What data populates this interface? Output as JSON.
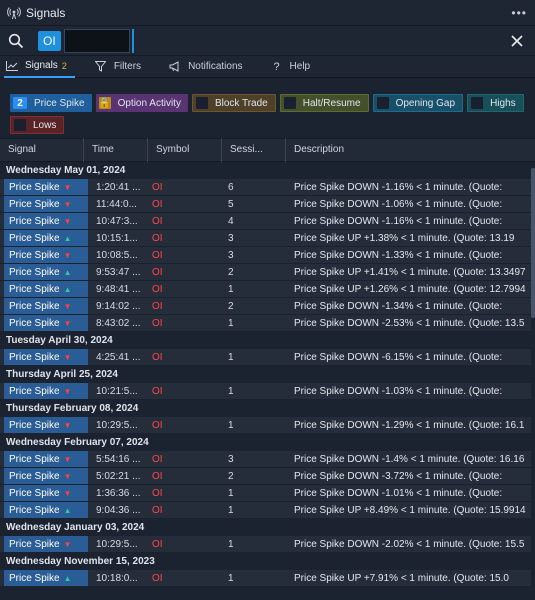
{
  "window": {
    "title": "Signals",
    "more_label": "•••"
  },
  "search": {
    "chip_label": "OI",
    "value": "",
    "placeholder": ""
  },
  "tabs": [
    {
      "label": "Signals",
      "badge": "2"
    },
    {
      "label": "Filters"
    },
    {
      "label": "Notifications"
    },
    {
      "label": "Help"
    }
  ],
  "filters": [
    {
      "label": "Price Spike",
      "count": "2",
      "style": "f-ps"
    },
    {
      "label": "Option Activity",
      "count": "🔒",
      "style": "f-oa"
    },
    {
      "label": "Block Trade",
      "count": "",
      "style": "f-bt"
    },
    {
      "label": "Halt/Resume",
      "count": "",
      "style": "f-hr"
    },
    {
      "label": "Opening Gap",
      "count": "",
      "style": "f-og"
    },
    {
      "label": "Highs",
      "count": "",
      "style": "f-hi"
    },
    {
      "label": "Lows",
      "count": "",
      "style": "f-lo"
    }
  ],
  "columns": {
    "signal": "Signal",
    "time": "Time",
    "symbol": "Symbol",
    "session": "Sessi...",
    "description": "Description"
  },
  "groups": [
    {
      "date": "Wednesday May 01, 2024",
      "rows": [
        {
          "signal": "Price Spike",
          "dir": "down",
          "time": "1:20:41 ...",
          "symbol": "OI",
          "session": "6",
          "description": "Price Spike DOWN -1.16% < 1 minute. (Quote:"
        },
        {
          "signal": "Price Spike",
          "dir": "down",
          "time": "11:44:0...",
          "symbol": "OI",
          "session": "5",
          "description": "Price Spike DOWN -1.06% < 1 minute. (Quote:"
        },
        {
          "signal": "Price Spike",
          "dir": "down",
          "time": "10:47:3...",
          "symbol": "OI",
          "session": "4",
          "description": "Price Spike DOWN -1.16% < 1 minute. (Quote:"
        },
        {
          "signal": "Price Spike",
          "dir": "up",
          "time": "10:15:1...",
          "symbol": "OI",
          "session": "3",
          "description": "Price Spike UP +1.38% < 1 minute. (Quote: 13.19"
        },
        {
          "signal": "Price Spike",
          "dir": "down",
          "time": "10:08:5...",
          "symbol": "OI",
          "session": "3",
          "description": "Price Spike DOWN -1.33% < 1 minute. (Quote:"
        },
        {
          "signal": "Price Spike",
          "dir": "up",
          "time": "9:53:47 ...",
          "symbol": "OI",
          "session": "2",
          "description": "Price Spike UP +1.41% < 1 minute. (Quote: 13.3497"
        },
        {
          "signal": "Price Spike",
          "dir": "up",
          "time": "9:48:41 ...",
          "symbol": "OI",
          "session": "1",
          "description": "Price Spike UP +1.26% < 1 minute. (Quote: 12.7994"
        },
        {
          "signal": "Price Spike",
          "dir": "down",
          "time": "9:14:02 ...",
          "symbol": "OI",
          "session": "2",
          "description": "Price Spike DOWN -1.34% < 1 minute. (Quote:"
        },
        {
          "signal": "Price Spike",
          "dir": "down",
          "time": "8:43:02 ...",
          "symbol": "OI",
          "session": "1",
          "description": "Price Spike DOWN -2.53% < 1 minute. (Quote: 13.5"
        }
      ]
    },
    {
      "date": "Tuesday April 30, 2024",
      "rows": [
        {
          "signal": "Price Spike",
          "dir": "down",
          "time": "4:25:41 ...",
          "symbol": "OI",
          "session": "1",
          "description": "Price Spike DOWN -6.15% < 1 minute. (Quote:"
        }
      ]
    },
    {
      "date": "Thursday April 25, 2024",
      "rows": [
        {
          "signal": "Price Spike",
          "dir": "down",
          "time": "10:21:5...",
          "symbol": "OI",
          "session": "1",
          "description": "Price Spike DOWN -1.03% < 1 minute. (Quote:"
        }
      ]
    },
    {
      "date": "Thursday February 08, 2024",
      "rows": [
        {
          "signal": "Price Spike",
          "dir": "down",
          "time": "10:29:5...",
          "symbol": "OI",
          "session": "1",
          "description": "Price Spike DOWN -1.29% < 1 minute. (Quote: 16.1"
        }
      ]
    },
    {
      "date": "Wednesday February 07, 2024",
      "rows": [
        {
          "signal": "Price Spike",
          "dir": "down",
          "time": "5:54:16 ...",
          "symbol": "OI",
          "session": "3",
          "description": "Price Spike DOWN -1.4% < 1 minute. (Quote: 16.16"
        },
        {
          "signal": "Price Spike",
          "dir": "down",
          "time": "5:02:21 ...",
          "symbol": "OI",
          "session": "2",
          "description": "Price Spike DOWN -3.72% < 1 minute. (Quote:"
        },
        {
          "signal": "Price Spike",
          "dir": "down",
          "time": "1:36:36 ...",
          "symbol": "OI",
          "session": "1",
          "description": "Price Spike DOWN -1.01% < 1 minute. (Quote:"
        },
        {
          "signal": "Price Spike",
          "dir": "up",
          "time": "9:04:36 ...",
          "symbol": "OI",
          "session": "1",
          "description": "Price Spike UP +8.49% < 1 minute. (Quote: 15.9914"
        }
      ]
    },
    {
      "date": "Wednesday January 03, 2024",
      "rows": [
        {
          "signal": "Price Spike",
          "dir": "down",
          "time": "10:29:5...",
          "symbol": "OI",
          "session": "1",
          "description": "Price Spike DOWN -2.02% < 1 minute. (Quote: 15.5"
        }
      ]
    },
    {
      "date": "Wednesday November 15, 2023",
      "rows": [
        {
          "signal": "Price Spike",
          "dir": "up",
          "time": "10:18:0...",
          "symbol": "OI",
          "session": "1",
          "description": "Price Spike UP +7.91% < 1 minute. (Quote: 15.0"
        }
      ]
    }
  ]
}
